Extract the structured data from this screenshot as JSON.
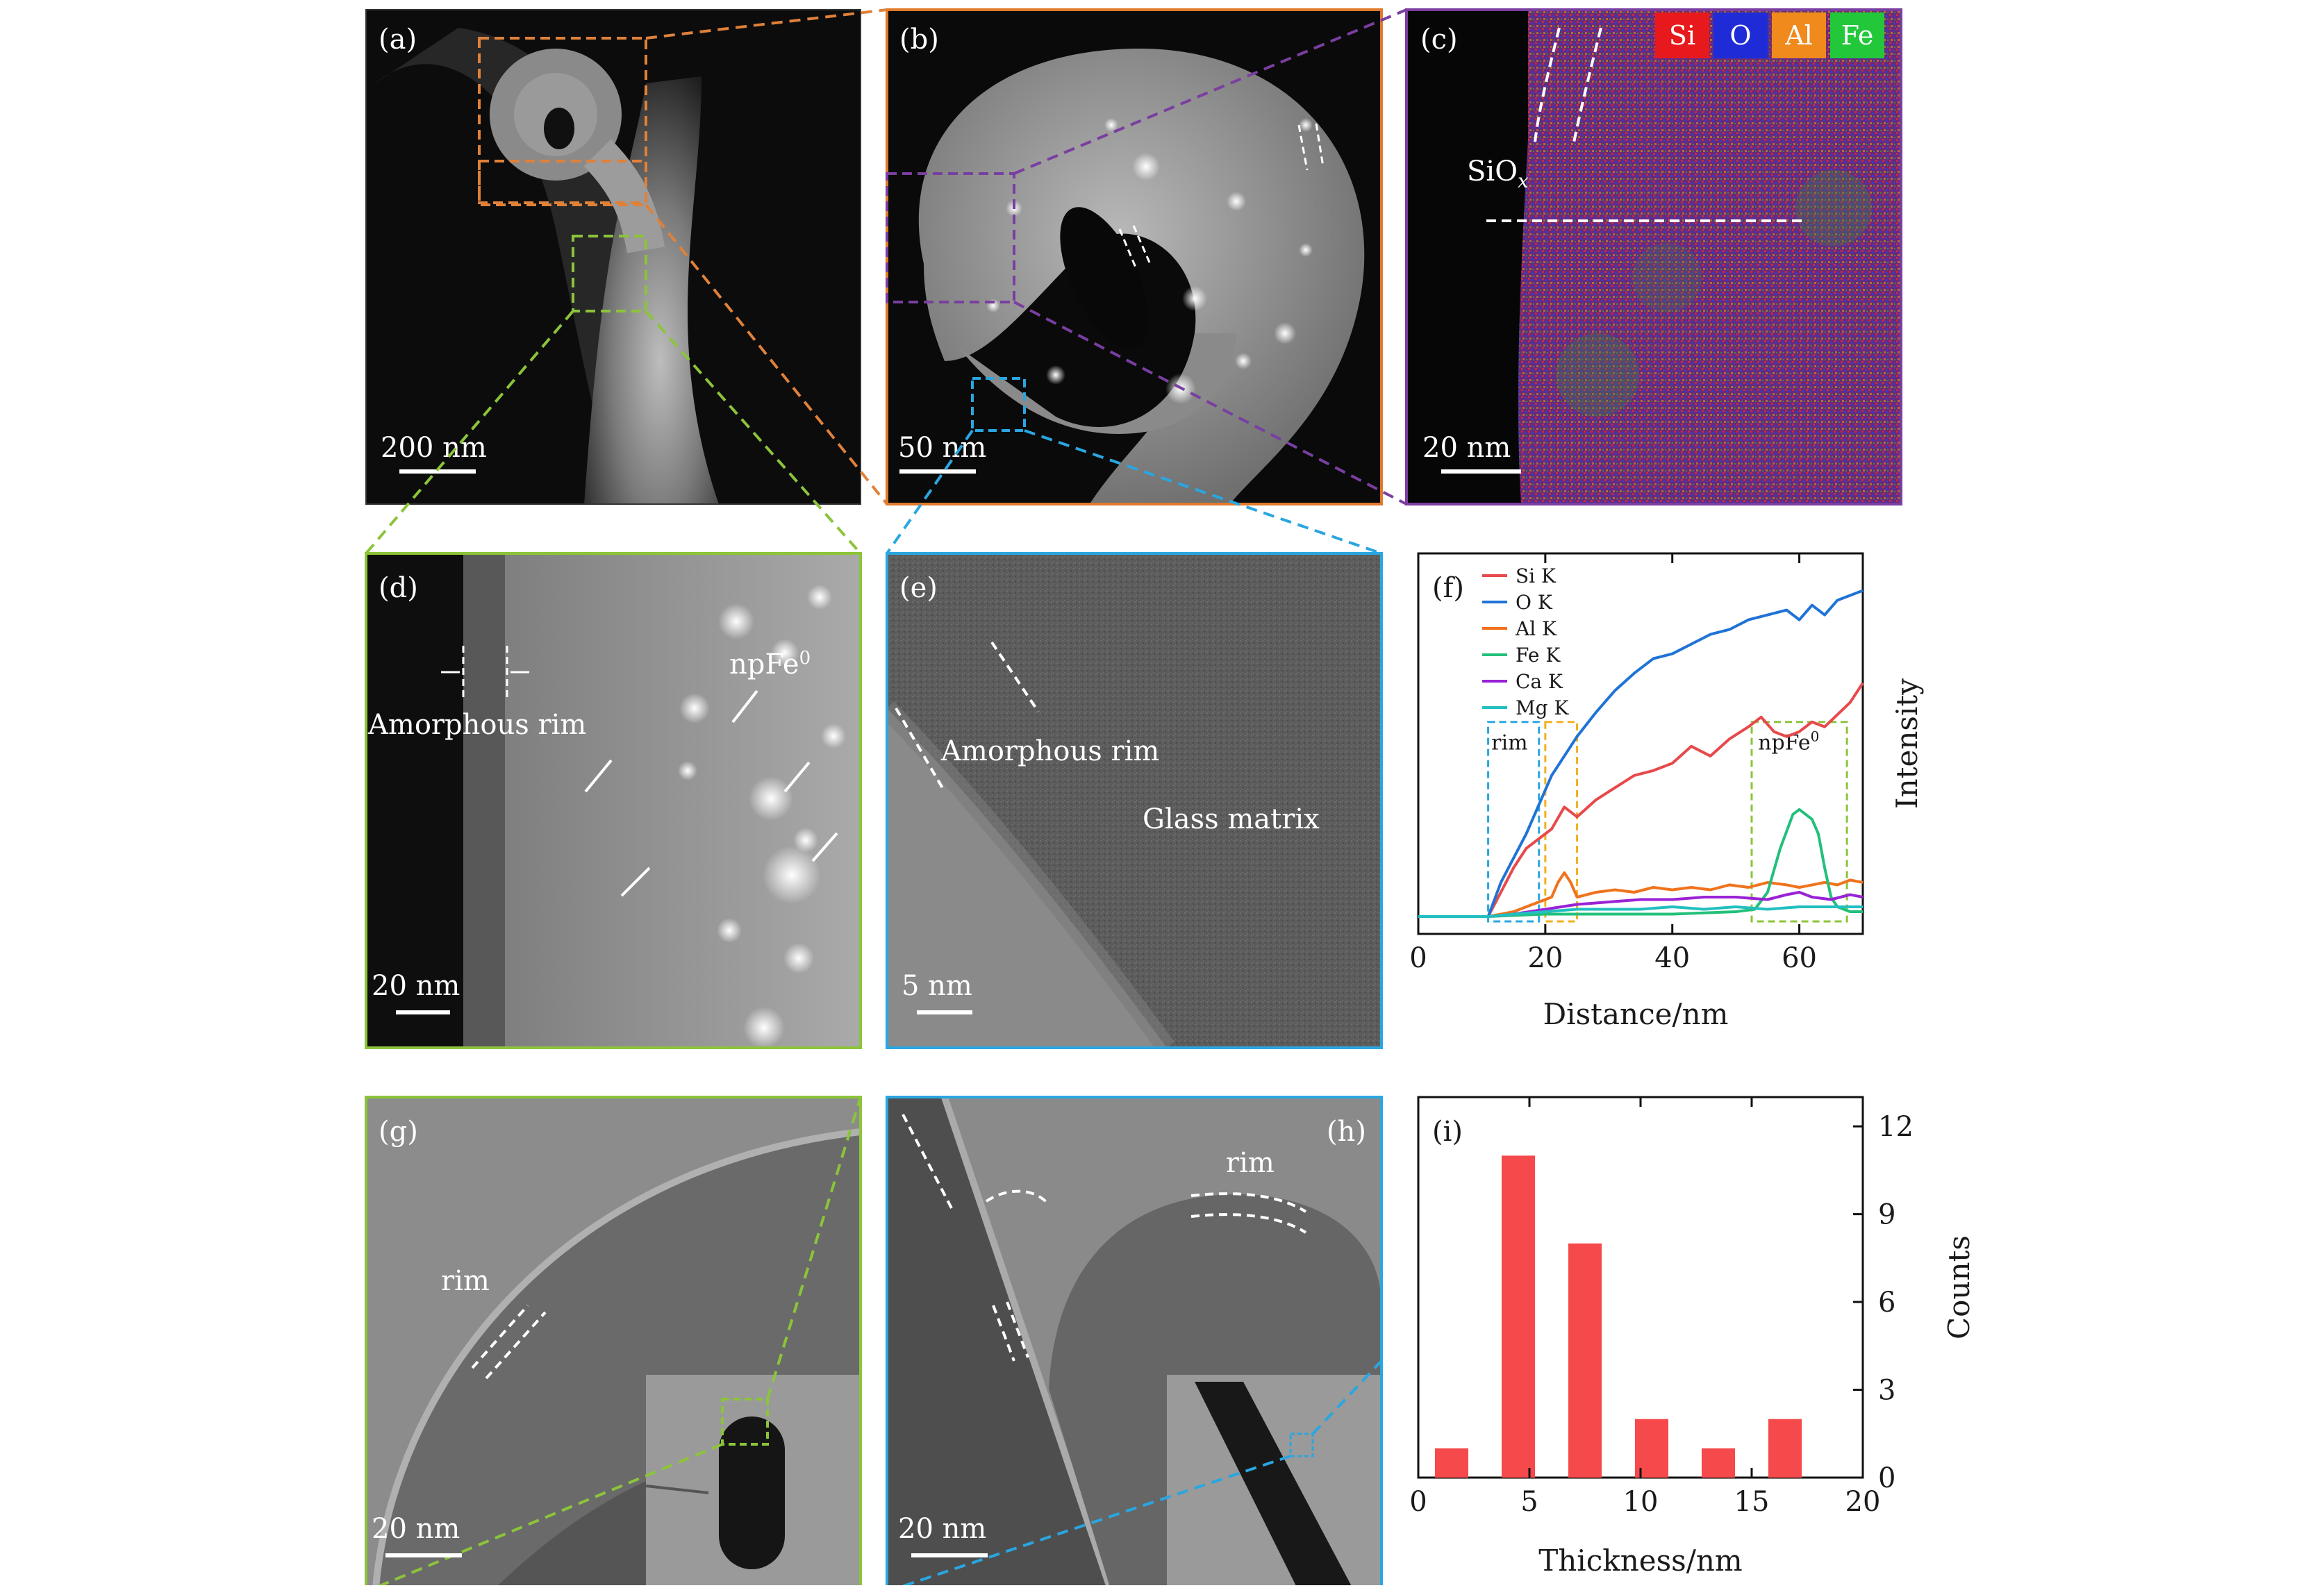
{
  "panels": {
    "a": {
      "label": "(a)",
      "scale_bar": "200 nm"
    },
    "b": {
      "label": "(b)",
      "scale_bar": "50 nm"
    },
    "c": {
      "label": "(c)",
      "scale_bar": "20 nm",
      "annotation": "SiO",
      "annotation_sub": "x",
      "legend": [
        {
          "text": "Si",
          "color": "#e8191c"
        },
        {
          "text": "O",
          "color": "#1f2bd6"
        },
        {
          "text": "Al",
          "color": "#f08a1c"
        },
        {
          "text": "Fe",
          "color": "#22c83a"
        }
      ]
    },
    "d": {
      "label": "(d)",
      "scale_bar": "20 nm",
      "rim_label": "Amorphous rim",
      "np_label": "npFe",
      "np_sup": "0"
    },
    "e": {
      "label": "(e)",
      "scale_bar": "5 nm",
      "rim_label": "Amorphous rim",
      "matrix_label": "Glass matrix"
    },
    "g": {
      "label": "(g)",
      "scale_bar": "20 nm",
      "rim_label": "rim"
    },
    "h": {
      "label": "(h)",
      "scale_bar": "20 nm",
      "rim_label": "rim"
    }
  },
  "chart_data": [
    {
      "panel": "(f)",
      "type": "line",
      "xlabel": "Distance/nm",
      "ylabel": "Intensity",
      "xlim": [
        0,
        70
      ],
      "xticks": [
        0,
        20,
        40,
        60
      ],
      "box_labels": {
        "rim": "rim",
        "np": "npFe",
        "np_sup": "0"
      },
      "series": [
        {
          "name": "Si K",
          "color": "#e8494b",
          "x": [
            0,
            11,
            13,
            15,
            17,
            19,
            21,
            23,
            25,
            28,
            31,
            34,
            37,
            40,
            43,
            46,
            49,
            52,
            54,
            56,
            58,
            60,
            62,
            64,
            66,
            68,
            70
          ],
          "y": [
            0.02,
            0.02,
            0.12,
            0.22,
            0.3,
            0.34,
            0.38,
            0.47,
            0.43,
            0.5,
            0.55,
            0.6,
            0.62,
            0.65,
            0.72,
            0.68,
            0.75,
            0.8,
            0.84,
            0.78,
            0.76,
            0.78,
            0.82,
            0.8,
            0.85,
            0.9,
            0.98
          ]
        },
        {
          "name": "O K",
          "color": "#1f73d6",
          "x": [
            0,
            11,
            13,
            15,
            17,
            19,
            21,
            23,
            25,
            28,
            31,
            34,
            37,
            40,
            43,
            46,
            49,
            52,
            55,
            58,
            60,
            62,
            64,
            66,
            68,
            70
          ],
          "y": [
            0.02,
            0.02,
            0.16,
            0.26,
            0.36,
            0.48,
            0.6,
            0.68,
            0.76,
            0.86,
            0.95,
            1.02,
            1.08,
            1.1,
            1.14,
            1.18,
            1.2,
            1.24,
            1.26,
            1.28,
            1.24,
            1.3,
            1.26,
            1.32,
            1.34,
            1.36
          ]
        },
        {
          "name": "Al K",
          "color": "#f0731c",
          "x": [
            0,
            11,
            15,
            19,
            21,
            22,
            23,
            24,
            25,
            28,
            31,
            34,
            37,
            40,
            43,
            46,
            49,
            52,
            55,
            58,
            60,
            62,
            64,
            66,
            68,
            70
          ],
          "y": [
            0.02,
            0.02,
            0.04,
            0.08,
            0.1,
            0.16,
            0.2,
            0.16,
            0.1,
            0.12,
            0.13,
            0.12,
            0.14,
            0.13,
            0.14,
            0.13,
            0.15,
            0.14,
            0.16,
            0.15,
            0.14,
            0.15,
            0.16,
            0.15,
            0.17,
            0.16
          ]
        },
        {
          "name": "Fe K",
          "color": "#22c07a",
          "x": [
            0,
            11,
            20,
            30,
            40,
            50,
            53,
            55,
            57,
            59,
            60,
            61,
            62,
            63,
            64,
            65,
            66,
            68,
            70
          ],
          "y": [
            0.02,
            0.02,
            0.03,
            0.03,
            0.03,
            0.04,
            0.05,
            0.12,
            0.3,
            0.44,
            0.46,
            0.44,
            0.42,
            0.36,
            0.22,
            0.1,
            0.06,
            0.04,
            0.04
          ]
        },
        {
          "name": "Ca K",
          "color": "#9a22d6",
          "x": [
            0,
            11,
            15,
            20,
            25,
            30,
            35,
            40,
            45,
            50,
            55,
            58,
            60,
            62,
            65,
            68,
            70
          ],
          "y": [
            0.02,
            0.02,
            0.03,
            0.05,
            0.07,
            0.08,
            0.09,
            0.09,
            0.1,
            0.1,
            0.09,
            0.11,
            0.12,
            0.1,
            0.09,
            0.11,
            0.1
          ]
        },
        {
          "name": "Mg K",
          "color": "#22bfc0",
          "x": [
            0,
            11,
            15,
            20,
            25,
            30,
            35,
            40,
            45,
            50,
            55,
            60,
            65,
            70
          ],
          "y": [
            0.02,
            0.02,
            0.03,
            0.04,
            0.05,
            0.05,
            0.05,
            0.06,
            0.05,
            0.06,
            0.05,
            0.06,
            0.06,
            0.06
          ]
        }
      ]
    },
    {
      "panel": "(i)",
      "type": "bar",
      "xlabel": "Thickness/nm",
      "ylabel": "Counts",
      "xlim": [
        0,
        20
      ],
      "ylim": [
        0,
        13
      ],
      "xticks": [
        0,
        5,
        10,
        15,
        20
      ],
      "yticks": [
        0,
        3,
        6,
        9,
        12
      ],
      "color": "#f5494b",
      "x": [
        1.5,
        4.5,
        7.5,
        10.5,
        13.5,
        16.5
      ],
      "values": [
        1,
        11,
        8,
        2,
        1,
        2
      ]
    }
  ]
}
